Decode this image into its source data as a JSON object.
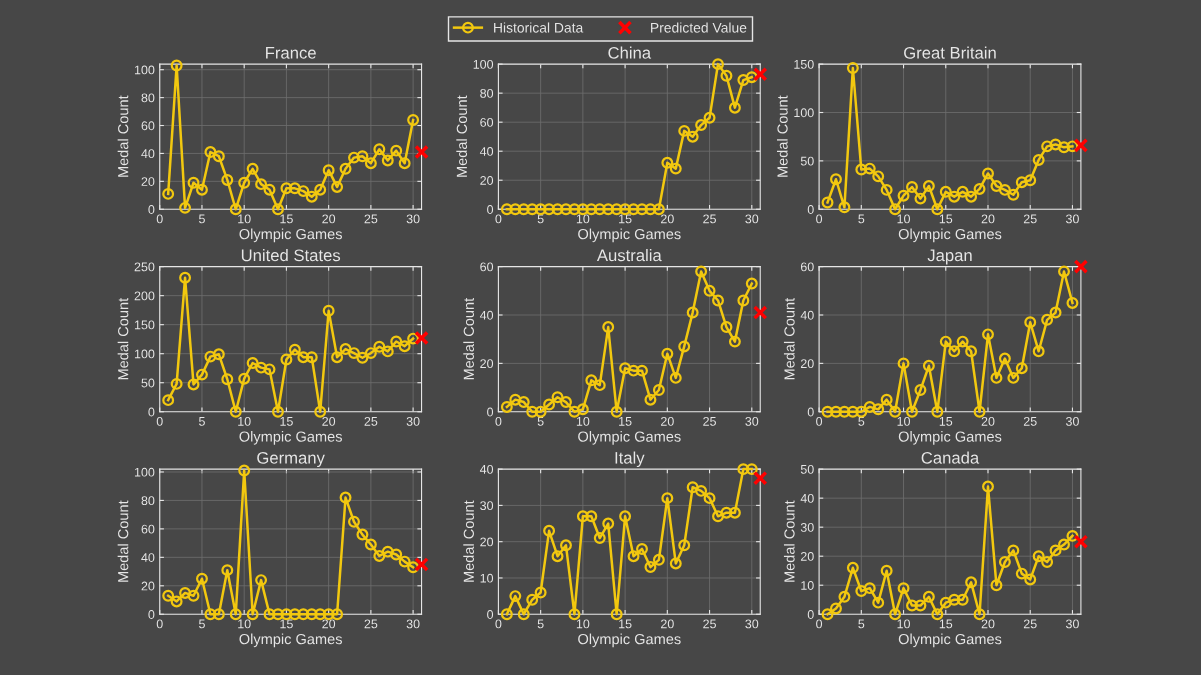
{
  "chart_data": [
    {
      "type": "line",
      "title": "France",
      "xlabel": "Olympic Games",
      "ylabel": "Medal Count",
      "xlim": [
        0,
        31
      ],
      "xticks": [
        0,
        5,
        10,
        15,
        20,
        25,
        30
      ],
      "ylim": [
        0,
        104
      ],
      "yticks": [
        0,
        20,
        40,
        60,
        80,
        100
      ],
      "grid": true,
      "legend": "top",
      "series": [
        {
          "name": "Historical Data",
          "marker": "circle",
          "color": "#f2c80f",
          "x": [
            1,
            2,
            3,
            4,
            5,
            6,
            7,
            8,
            9,
            10,
            11,
            12,
            13,
            14,
            15,
            16,
            17,
            18,
            19,
            20,
            21,
            22,
            23,
            24,
            25,
            26,
            27,
            28,
            29,
            30
          ],
          "values": [
            11,
            103,
            1,
            19,
            14,
            41,
            38,
            21,
            0,
            19,
            29,
            18,
            14,
            0,
            15,
            15,
            13,
            9,
            14,
            28,
            16,
            29,
            37,
            38,
            33,
            43,
            35,
            42,
            33,
            64
          ]
        },
        {
          "name": "Predicted Value",
          "type": "scatter",
          "marker": "cross",
          "color": "#ff0000",
          "x": [
            31
          ],
          "values": [
            41
          ]
        }
      ]
    },
    {
      "type": "line",
      "title": "China",
      "xlabel": "Olympic Games",
      "ylabel": "Medal Count",
      "xlim": [
        0,
        31
      ],
      "xticks": [
        0,
        5,
        10,
        15,
        20,
        25,
        30
      ],
      "ylim": [
        0,
        100
      ],
      "yticks": [
        0,
        20,
        40,
        60,
        80,
        100
      ],
      "grid": true,
      "series": [
        {
          "marker": "circle",
          "color": "#f2c80f",
          "x": [
            1,
            2,
            3,
            4,
            5,
            6,
            7,
            8,
            9,
            10,
            11,
            12,
            13,
            14,
            15,
            16,
            17,
            18,
            19,
            20,
            21,
            22,
            23,
            24,
            25,
            26,
            27,
            28,
            29,
            30
          ],
          "values": [
            0,
            0,
            0,
            0,
            0,
            0,
            0,
            0,
            0,
            0,
            0,
            0,
            0,
            0,
            0,
            0,
            0,
            0,
            0,
            32,
            28,
            54,
            50,
            58,
            63,
            100,
            92,
            70,
            89,
            91
          ]
        },
        {
          "type": "scatter",
          "marker": "cross",
          "color": "#ff0000",
          "x": [
            31
          ],
          "values": [
            93
          ]
        }
      ]
    },
    {
      "type": "line",
      "title": "Great Britain",
      "xlabel": "Olympic Games",
      "ylabel": "Medal Count",
      "xlim": [
        0,
        31
      ],
      "xticks": [
        0,
        5,
        10,
        15,
        20,
        25,
        30
      ],
      "ylim": [
        0,
        150
      ],
      "yticks": [
        0,
        50,
        100,
        150
      ],
      "grid": true,
      "series": [
        {
          "marker": "circle",
          "color": "#f2c80f",
          "x": [
            1,
            2,
            3,
            4,
            5,
            6,
            7,
            8,
            9,
            10,
            11,
            12,
            13,
            14,
            15,
            16,
            17,
            18,
            19,
            20,
            21,
            22,
            23,
            24,
            25,
            26,
            27,
            28,
            29,
            30
          ],
          "values": [
            7,
            31,
            2,
            146,
            41,
            42,
            34,
            20,
            0,
            14,
            23,
            11,
            24,
            0,
            18,
            13,
            18,
            13,
            21,
            37,
            24,
            20,
            15,
            28,
            30,
            51,
            65,
            67,
            64,
            65
          ]
        },
        {
          "type": "scatter",
          "marker": "cross",
          "color": "#ff0000",
          "x": [
            31
          ],
          "values": [
            66
          ]
        }
      ]
    },
    {
      "type": "line",
      "title": "United States",
      "xlabel": "Olympic Games",
      "ylabel": "Medal Count",
      "xlim": [
        0,
        31
      ],
      "xticks": [
        0,
        5,
        10,
        15,
        20,
        25,
        30
      ],
      "ylim": [
        0,
        250
      ],
      "yticks": [
        0,
        50,
        100,
        150,
        200,
        250
      ],
      "grid": true,
      "series": [
        {
          "marker": "circle",
          "color": "#f2c80f",
          "x": [
            1,
            2,
            3,
            4,
            5,
            6,
            7,
            8,
            9,
            10,
            11,
            12,
            13,
            14,
            15,
            16,
            17,
            18,
            19,
            20,
            21,
            22,
            23,
            24,
            25,
            26,
            27,
            28,
            29,
            30
          ],
          "values": [
            20,
            48,
            231,
            47,
            64,
            95,
            99,
            56,
            0,
            57,
            84,
            76,
            73,
            0,
            90,
            107,
            94,
            94,
            0,
            174,
            94,
            108,
            101,
            93,
            101,
            112,
            104,
            121,
            113,
            126
          ]
        },
        {
          "type": "scatter",
          "marker": "cross",
          "color": "#ff0000",
          "x": [
            31
          ],
          "values": [
            127
          ]
        }
      ]
    },
    {
      "type": "line",
      "title": "Australia",
      "xlabel": "Olympic Games",
      "ylabel": "Medal Count",
      "xlim": [
        0,
        31
      ],
      "xticks": [
        0,
        5,
        10,
        15,
        20,
        25,
        30
      ],
      "ylim": [
        0,
        60
      ],
      "yticks": [
        0,
        20,
        40,
        60
      ],
      "grid": true,
      "series": [
        {
          "marker": "circle",
          "color": "#f2c80f",
          "x": [
            1,
            2,
            3,
            4,
            5,
            6,
            7,
            8,
            9,
            10,
            11,
            12,
            13,
            14,
            15,
            16,
            17,
            18,
            19,
            20,
            21,
            22,
            23,
            24,
            25,
            26,
            27,
            28,
            29,
            30
          ],
          "values": [
            2,
            5,
            4,
            0,
            0,
            3,
            6,
            4,
            0,
            1,
            13,
            11,
            35,
            0,
            18,
            17,
            17,
            5,
            9,
            24,
            14,
            27,
            41,
            58,
            50,
            46,
            35,
            29,
            46,
            53
          ]
        },
        {
          "type": "scatter",
          "marker": "cross",
          "color": "#ff0000",
          "x": [
            31
          ],
          "values": [
            41
          ]
        }
      ]
    },
    {
      "type": "line",
      "title": "Japan",
      "xlabel": "Olympic Games",
      "ylabel": "Medal Count",
      "xlim": [
        0,
        31
      ],
      "xticks": [
        0,
        5,
        10,
        15,
        20,
        25,
        30
      ],
      "ylim": [
        0,
        60
      ],
      "yticks": [
        0,
        20,
        40,
        60
      ],
      "grid": true,
      "series": [
        {
          "marker": "circle",
          "color": "#f2c80f",
          "x": [
            1,
            2,
            3,
            4,
            5,
            6,
            7,
            8,
            9,
            10,
            11,
            12,
            13,
            14,
            15,
            16,
            17,
            18,
            19,
            20,
            21,
            22,
            23,
            24,
            25,
            26,
            27,
            28,
            29,
            30
          ],
          "values": [
            0,
            0,
            0,
            0,
            0,
            2,
            1,
            5,
            0,
            20,
            0,
            9,
            19,
            0,
            29,
            25,
            29,
            25,
            0,
            32,
            14,
            22,
            14,
            18,
            37,
            25,
            38,
            41,
            58,
            45
          ]
        },
        {
          "type": "scatter",
          "marker": "cross",
          "color": "#ff0000",
          "x": [
            31
          ],
          "values": [
            60
          ]
        }
      ]
    },
    {
      "type": "line",
      "title": "Germany",
      "xlabel": "Olympic Games",
      "ylabel": "Medal Count",
      "xlim": [
        0,
        31
      ],
      "xticks": [
        0,
        5,
        10,
        15,
        20,
        25,
        30
      ],
      "ylim": [
        0,
        102
      ],
      "yticks": [
        0,
        20,
        40,
        60,
        80,
        100
      ],
      "grid": true,
      "series": [
        {
          "marker": "circle",
          "color": "#f2c80f",
          "x": [
            1,
            2,
            3,
            4,
            5,
            6,
            7,
            8,
            9,
            10,
            11,
            12,
            13,
            14,
            15,
            16,
            17,
            18,
            19,
            20,
            21,
            22,
            23,
            24,
            25,
            26,
            27,
            28,
            29,
            30
          ],
          "values": [
            13,
            9,
            15,
            13,
            25,
            0,
            0,
            31,
            0,
            101,
            0,
            24,
            0,
            0,
            0,
            0,
            0,
            0,
            0,
            0,
            0,
            82,
            65,
            56,
            49,
            41,
            44,
            42,
            37,
            33
          ]
        },
        {
          "type": "scatter",
          "marker": "cross",
          "color": "#ff0000",
          "x": [
            31
          ],
          "values": [
            35
          ]
        }
      ]
    },
    {
      "type": "line",
      "title": "Italy",
      "xlabel": "Olympic Games",
      "ylabel": "Medal Count",
      "xlim": [
        0,
        31
      ],
      "xticks": [
        0,
        5,
        10,
        15,
        20,
        25,
        30
      ],
      "ylim": [
        0,
        40
      ],
      "yticks": [
        0,
        10,
        20,
        30,
        40
      ],
      "grid": true,
      "series": [
        {
          "marker": "circle",
          "color": "#f2c80f",
          "x": [
            1,
            2,
            3,
            4,
            5,
            6,
            7,
            8,
            9,
            10,
            11,
            12,
            13,
            14,
            15,
            16,
            17,
            18,
            19,
            20,
            21,
            22,
            23,
            24,
            25,
            26,
            27,
            28,
            29,
            30
          ],
          "values": [
            0,
            5,
            0,
            4,
            6,
            23,
            16,
            19,
            0,
            27,
            27,
            21,
            25,
            0,
            27,
            16,
            18,
            13,
            15,
            32,
            14,
            19,
            35,
            34,
            32,
            27,
            28,
            28,
            40,
            40
          ]
        },
        {
          "type": "scatter",
          "marker": "cross",
          "color": "#ff0000",
          "x": [
            31
          ],
          "values": [
            37.5
          ]
        }
      ]
    },
    {
      "type": "line",
      "title": "Canada",
      "xlabel": "Olympic Games",
      "ylabel": "Medal Count",
      "xlim": [
        0,
        31
      ],
      "xticks": [
        0,
        5,
        10,
        15,
        20,
        25,
        30
      ],
      "ylim": [
        0,
        50
      ],
      "yticks": [
        0,
        10,
        20,
        30,
        40,
        50
      ],
      "grid": true,
      "series": [
        {
          "marker": "circle",
          "color": "#f2c80f",
          "x": [
            1,
            2,
            3,
            4,
            5,
            6,
            7,
            8,
            9,
            10,
            11,
            12,
            13,
            14,
            15,
            16,
            17,
            18,
            19,
            20,
            21,
            22,
            23,
            24,
            25,
            26,
            27,
            28,
            29,
            30
          ],
          "values": [
            0,
            2,
            6,
            16,
            8,
            9,
            4,
            15,
            0,
            9,
            3,
            3,
            6,
            0,
            4,
            5,
            5,
            11,
            0,
            44,
            10,
            18,
            22,
            14,
            12,
            20,
            18,
            22,
            24,
            27
          ]
        },
        {
          "type": "scatter",
          "marker": "cross",
          "color": "#ff0000",
          "x": [
            31
          ],
          "values": [
            25
          ]
        }
      ]
    }
  ]
}
